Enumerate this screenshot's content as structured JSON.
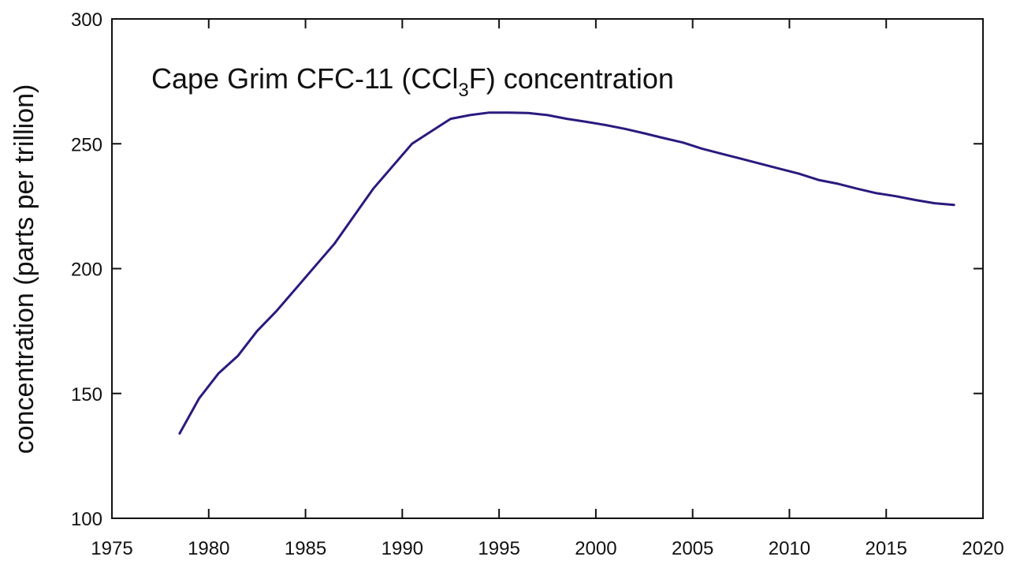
{
  "chart_data": {
    "type": "line",
    "title_parts": {
      "before": "Cape Grim CFC-11 (CCl",
      "subscript": "3",
      "after": "F) concentration"
    },
    "xlabel": "",
    "ylabel": "concentration (parts per trillion)",
    "xlim": [
      1975,
      2020
    ],
    "ylim": [
      100,
      300
    ],
    "x_ticks": [
      "1975",
      "1980",
      "1985",
      "1990",
      "1995",
      "2000",
      "2005",
      "2010",
      "2015",
      "2020"
    ],
    "y_ticks": [
      "100",
      "150",
      "200",
      "250",
      "300"
    ],
    "grid": false,
    "line_color": "#2b1a7e",
    "series": [
      {
        "x": [
          1978.5,
          1979.5,
          1980.5,
          1981.5,
          1982.5,
          1983.5,
          1984.5,
          1985.5,
          1986.5,
          1987.5,
          1988.5,
          1989.5,
          1990.5,
          1991.5,
          1992.5,
          1993.5,
          1994.5,
          1995.5,
          1996.5,
          1997.5,
          1998.5,
          1999.5,
          2000.5,
          2001.5,
          2002.5,
          2003.5,
          2004.5,
          2005.5,
          2006.5,
          2007.5,
          2008.5,
          2009.5,
          2010.5,
          2011.5,
          2012.5,
          2013.5,
          2014.5,
          2015.5,
          2016.5,
          2017.5,
          2018.5
        ],
        "y": [
          134,
          148,
          158,
          165,
          175,
          183,
          192,
          201,
          210,
          221,
          232,
          241,
          250,
          255,
          260,
          261.5,
          262.5,
          262.5,
          262.3,
          261.5,
          260,
          258.8,
          257.5,
          256,
          254.2,
          252.3,
          250.5,
          248,
          246,
          244,
          242,
          240,
          238,
          235.5,
          234,
          232,
          230.2,
          229,
          227.5,
          226.2,
          225.5
        ]
      }
    ]
  }
}
